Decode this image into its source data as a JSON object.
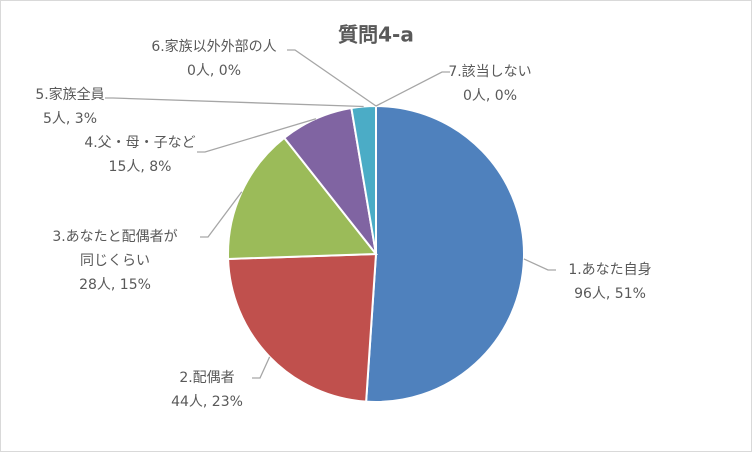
{
  "chart_data": {
    "type": "pie",
    "title": "質問4-a",
    "categories": [
      "1.あなた自身",
      "2.配偶者",
      "3.あなたと配偶者が同じくらい",
      "4.父・母・子など",
      "5.家族全員",
      "6.家族以外外部の人",
      "7.該当しない"
    ],
    "values": [
      96,
      44,
      28,
      15,
      5,
      0,
      0
    ],
    "value_labels": [
      "96人, 51%",
      "44人, 23%",
      "28人, 15%",
      "15人, 8%",
      "5人, 3%",
      "0人, 0%",
      "0人, 0%"
    ],
    "colors": [
      "#4f81bd",
      "#c0504d",
      "#9bbb59",
      "#8064a2",
      "#4bacc6",
      "#f79646",
      "#2c4d75"
    ]
  }
}
